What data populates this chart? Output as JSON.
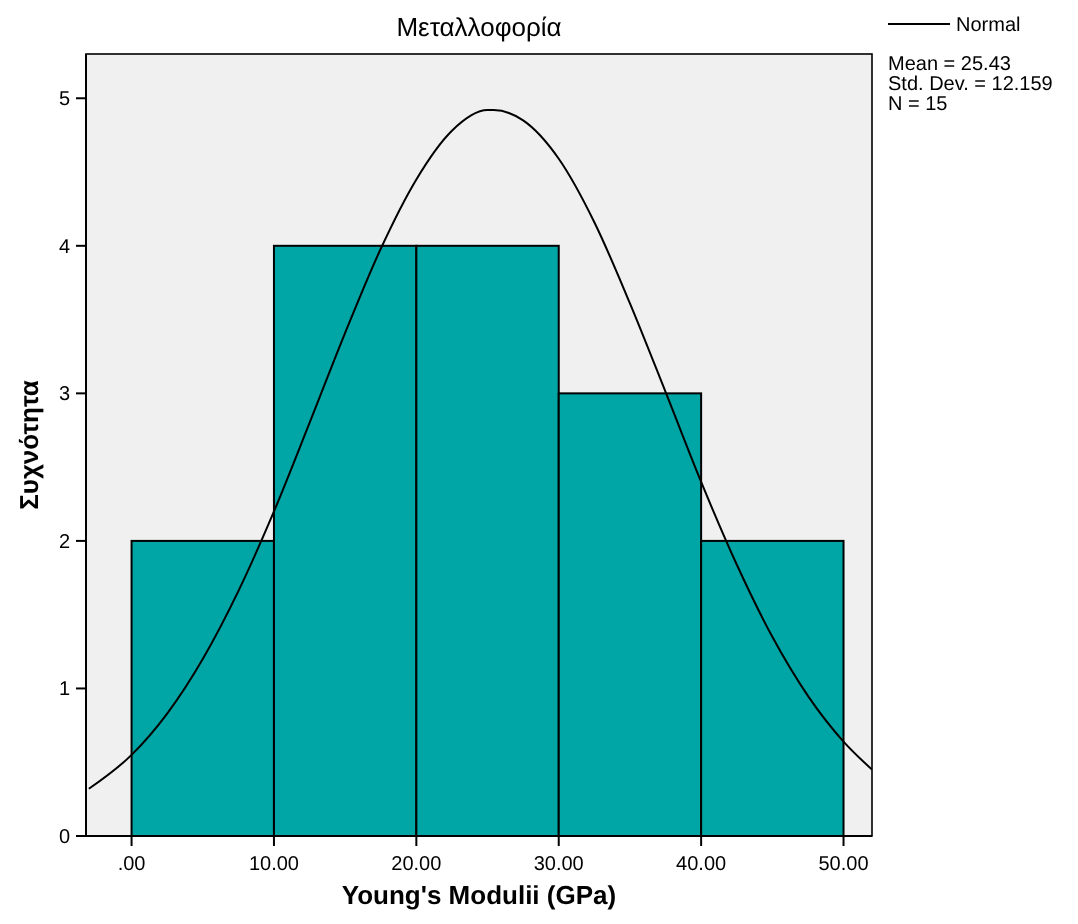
{
  "chart_data": {
    "type": "histogram",
    "title": "Μεταλλοφορία",
    "xlabel": "Young's Modulii (GPa)",
    "ylabel": "Συχνότητα",
    "annotations": [
      "Mean = 25.43",
      "Std. Dev. = 12.159",
      "N = 15"
    ],
    "xlim": [
      -3.2,
      52
    ],
    "xticks": [
      {
        "value": 0,
        "label": ".00"
      },
      {
        "value": 10,
        "label": "10.00"
      },
      {
        "value": 20,
        "label": "20.00"
      },
      {
        "value": 30,
        "label": "30.00"
      },
      {
        "value": 40,
        "label": "40.00"
      },
      {
        "value": 50,
        "label": "50.00"
      }
    ],
    "ylim": [
      0,
      5.3
    ],
    "yticks": [
      0,
      1,
      2,
      3,
      4,
      5
    ],
    "legend": "right",
    "grid": false,
    "series": [
      {
        "color": "#00a5a5",
        "bins": [
          0,
          10,
          20,
          30,
          40,
          50
        ],
        "values": [
          2,
          4,
          4,
          3,
          2
        ]
      },
      {
        "type": "line",
        "name": "Normal",
        "color": "#000000",
        "x": [
          -3,
          0,
          2.5,
          5,
          7.5,
          10,
          12.5,
          15,
          17.5,
          20,
          22.5,
          25,
          25.43,
          27.5,
          30,
          32.5,
          35,
          37.5,
          40,
          42.5,
          45,
          47.5,
          50,
          52
        ],
        "values": [
          0.32,
          0.55,
          0.83,
          1.2,
          1.66,
          2.2,
          2.8,
          3.41,
          3.98,
          4.45,
          4.78,
          4.92,
          4.92,
          4.85,
          4.59,
          4.16,
          3.61,
          3.01,
          2.4,
          1.84,
          1.35,
          0.95,
          0.64,
          0.45
        ]
      }
    ]
  }
}
